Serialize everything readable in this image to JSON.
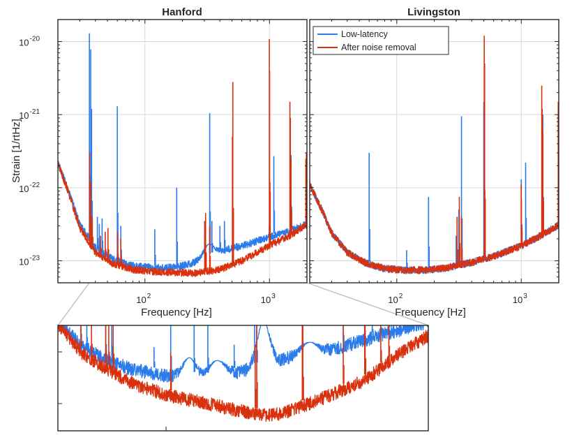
{
  "chart_data": [
    {
      "id": "hanford",
      "type": "line",
      "title": "Hanford",
      "xlabel": "Frequency [Hz]",
      "ylabel": "Strain [1/rtHz]",
      "xscale": "log",
      "yscale": "log",
      "xlim": [
        20,
        2000
      ],
      "ylim": [
        5e-24,
        2e-20
      ],
      "grid": true,
      "xticks": [
        {
          "base": "10",
          "exp": "2",
          "value": 100
        },
        {
          "base": "10",
          "exp": "3",
          "value": 1000
        }
      ],
      "yticks": [
        {
          "base": "10",
          "exp": "-23",
          "value": 1e-23
        },
        {
          "base": "10",
          "exp": "-22",
          "value": 1e-22
        },
        {
          "base": "10",
          "exp": "-21",
          "value": 1e-21
        },
        {
          "base": "10",
          "exp": "-20",
          "value": 1e-20
        }
      ],
      "series": [
        {
          "name": "Low-latency",
          "color": "#2b7bea",
          "baseline": [
            [
              20,
              2.2e-22
            ],
            [
              25,
              8e-23
            ],
            [
              30,
              3.2e-23
            ],
            [
              40,
              1.5e-23
            ],
            [
              55,
              1.05e-23
            ],
            [
              80,
              8.5e-24
            ],
            [
              120,
              8e-24
            ],
            [
              180,
              8.2e-24
            ],
            [
              250,
              9.5e-24
            ],
            [
              400,
              1.35e-23
            ],
            [
              600,
              1.6e-23
            ],
            [
              1000,
              2.1e-23
            ],
            [
              1500,
              2.6e-23
            ],
            [
              2000,
              3.2e-23
            ]
          ],
          "lines": [
            [
              35.8,
              1.3e-20
            ],
            [
              36.7,
              7.8e-21
            ],
            [
              37.3,
              1.2e-21
            ],
            [
              41.5,
              4e-23
            ],
            [
              43,
              3.2e-23
            ],
            [
              45.3,
              3.8e-23
            ],
            [
              60,
              1.3e-21
            ],
            [
              64,
              3e-23
            ],
            [
              120,
              2.7e-23
            ],
            [
              180,
              1e-22
            ],
            [
              302,
              3.5e-23
            ],
            [
              331,
              1.05e-21
            ],
            [
              345,
              3.5e-23
            ],
            [
              400,
              3e-23
            ],
            [
              435,
              3.5e-23
            ],
            [
              505,
              5e-23
            ],
            [
              998,
              3e-23
            ],
            [
              1084,
              2.7e-22
            ],
            [
              1490,
              2.8e-22
            ]
          ],
          "bumps": [
            [
              331,
              1.7e-23,
              0.04
            ],
            [
              550,
              1.25e-23,
              0.05
            ],
            [
              1300,
              1.2e-23,
              0.03
            ]
          ]
        },
        {
          "name": "After noise removal",
          "color": "#d9310e",
          "baseline": [
            [
              20,
              2.2e-22
            ],
            [
              25,
              7.5e-23
            ],
            [
              30,
              2.8e-23
            ],
            [
              40,
              1.3e-23
            ],
            [
              55,
              9.2e-24
            ],
            [
              80,
              7.6e-24
            ],
            [
              120,
              7.1e-24
            ],
            [
              180,
              6.9e-24
            ],
            [
              250,
              6.8e-24
            ],
            [
              400,
              7.6e-24
            ],
            [
              600,
              1e-23
            ],
            [
              1000,
              1.6e-23
            ],
            [
              1500,
              2.3e-23
            ],
            [
              2000,
              3.1e-23
            ]
          ],
          "lines": [
            [
              35.9,
              3e-22
            ],
            [
              36.7,
              1.2e-22
            ],
            [
              37.8,
              4e-23
            ],
            [
              44,
              2.2e-23
            ],
            [
              48,
              2.5e-23
            ],
            [
              50.5,
              2.8e-23
            ],
            [
              60.2,
              2.5e-23
            ],
            [
              64,
              2e-23
            ],
            [
              302,
              3.5e-23
            ],
            [
              307,
              4.5e-23
            ],
            [
              331,
              3e-23
            ],
            [
              504,
              5e-22
            ],
            [
              508,
              2.8e-21
            ],
            [
              998,
              1.08e-20
            ],
            [
              1003,
              4e-21
            ],
            [
              1460,
              1.5e-21
            ],
            [
              1472,
              9e-22
            ],
            [
              1490,
              2.5e-22
            ],
            [
              1960,
              2.5e-22
            ],
            [
              1980,
              3e-22
            ]
          ],
          "bumps": []
        }
      ],
      "legend": null
    },
    {
      "id": "livingston",
      "type": "line",
      "title": "Livingston",
      "xlabel": "Frequency [Hz]",
      "ylabel": "",
      "xscale": "log",
      "yscale": "log",
      "xlim": [
        20,
        2000
      ],
      "ylim": [
        5e-24,
        2e-20
      ],
      "grid": true,
      "xticks": [
        {
          "base": "10",
          "exp": "2",
          "value": 100
        },
        {
          "base": "10",
          "exp": "3",
          "value": 1000
        }
      ],
      "yticks": [],
      "series": [
        {
          "name": "Low-latency",
          "color": "#2b7bea",
          "baseline": [
            [
              20,
              1.1e-22
            ],
            [
              25,
              5e-23
            ],
            [
              30,
              2.4e-23
            ],
            [
              40,
              1.3e-23
            ],
            [
              55,
              9.5e-24
            ],
            [
              80,
              7.8e-24
            ],
            [
              120,
              7.4e-24
            ],
            [
              180,
              7.5e-24
            ],
            [
              250,
              8e-24
            ],
            [
              400,
              9.5e-24
            ],
            [
              600,
              1.15e-23
            ],
            [
              1000,
              1.6e-23
            ],
            [
              1500,
              2.3e-23
            ],
            [
              2000,
              3.1e-23
            ]
          ],
          "lines": [
            [
              60,
              3e-22
            ],
            [
              120,
              1.4e-23
            ],
            [
              180,
              7.5e-23
            ],
            [
              300,
              2.2e-23
            ],
            [
              315,
              5e-23
            ],
            [
              331,
              9.5e-22
            ],
            [
              500,
              1.5e-21
            ],
            [
              1000,
              1.3e-22
            ],
            [
              1084,
              2.2e-22
            ],
            [
              1490,
              1e-21
            ]
          ],
          "bumps": []
        },
        {
          "name": "After noise removal",
          "color": "#d9310e",
          "baseline": [
            [
              20,
              1.1e-22
            ],
            [
              25,
              5e-23
            ],
            [
              30,
              2.4e-23
            ],
            [
              40,
              1.3e-23
            ],
            [
              55,
              9.5e-24
            ],
            [
              80,
              7.8e-24
            ],
            [
              120,
              7.4e-24
            ],
            [
              180,
              7.5e-24
            ],
            [
              250,
              8e-24
            ],
            [
              400,
              9.5e-24
            ],
            [
              600,
              1.15e-23
            ],
            [
              1000,
              1.6e-23
            ],
            [
              1500,
              2.3e-23
            ],
            [
              2000,
              3.1e-23
            ]
          ],
          "lines": [
            [
              305,
              4e-23
            ],
            [
              318,
              7.5e-23
            ],
            [
              331,
              4e-23
            ],
            [
              504,
              1.2e-20
            ],
            [
              508,
              5e-21
            ],
            [
              998,
              1.1e-22
            ],
            [
              1003,
              7e-23
            ],
            [
              1460,
              2.5e-21
            ],
            [
              1472,
              1.2e-21
            ],
            [
              1490,
              6e-22
            ],
            [
              1980,
              1.5e-21
            ],
            [
              1996,
              2e-22
            ]
          ],
          "bumps": []
        }
      ],
      "legend": {
        "position": "top-left",
        "entries": [
          "Low-latency",
          "After noise removal"
        ]
      }
    },
    {
      "id": "zoom",
      "type": "line",
      "title": "",
      "xlabel": "",
      "ylabel": "",
      "xscale": "log",
      "yscale": "log",
      "xlim": [
        35,
        2000
      ],
      "ylim": [
        6.3e-24,
        2.2e-23
      ],
      "grid": false,
      "xticks": [],
      "yticks": [],
      "series": [
        {
          "name": "Low-latency",
          "color": "#2b7bea",
          "baseline": [
            [
              35,
              2.3e-23
            ],
            [
              45,
              1.75e-23
            ],
            [
              60,
              1.45e-23
            ],
            [
              80,
              1.3e-23
            ],
            [
              120,
              1.2e-23
            ],
            [
              180,
              1.17e-23
            ],
            [
              250,
              1.25e-23
            ],
            [
              330,
              1.35e-23
            ],
            [
              400,
              1.45e-23
            ],
            [
              500,
              1.55e-23
            ],
            [
              700,
              1.65e-23
            ],
            [
              1000,
              1.85e-23
            ],
            [
              1500,
              2.1e-23
            ],
            [
              2000,
              2.3e-23
            ]
          ],
          "lines": [
            [
              45,
              2.3e-23
            ],
            [
              48,
              2.2e-23
            ],
            [
              59,
              2.3e-23
            ],
            [
              63,
              2.3e-23
            ],
            [
              100,
              1.7e-23
            ],
            [
              120,
              2.3e-23
            ],
            [
              155,
              2.2e-23
            ],
            [
              180,
              2.3e-23
            ],
            [
              240,
              1.75e-23
            ],
            [
              300,
              2.3e-23
            ],
            [
              307,
              2.3e-23
            ],
            [
              505,
              2.3e-23
            ],
            [
              790,
              2.3e-23
            ],
            [
              998,
              2.3e-23
            ],
            [
              1084,
              2.3e-23
            ],
            [
              1190,
              2.3e-23
            ],
            [
              1300,
              2.3e-23
            ]
          ],
          "bumps": [
            [
              147,
              1.5e-23,
              0.03
            ],
            [
              200,
              1.45e-23,
              0.04
            ],
            [
              331,
              2.3e-23,
              0.03
            ],
            [
              550,
              1.8e-23,
              0.04
            ]
          ]
        },
        {
          "name": "After noise removal",
          "color": "#d9310e",
          "baseline": [
            [
              35,
              2.25e-23
            ],
            [
              45,
              1.6e-23
            ],
            [
              60,
              1.3e-23
            ],
            [
              80,
              1.1e-23
            ],
            [
              120,
              9.5e-24
            ],
            [
              180,
              8.7e-24
            ],
            [
              250,
              8e-24
            ],
            [
              330,
              7.6e-24
            ],
            [
              400,
              7.7e-24
            ],
            [
              500,
              8.4e-24
            ],
            [
              700,
              9.7e-24
            ],
            [
              1000,
              1.15e-23
            ],
            [
              1500,
              1.6e-23
            ],
            [
              2000,
              1.95e-23
            ]
          ],
          "lines": [
            [
              45,
              2.3e-23
            ],
            [
              48.5,
              1.6e-23
            ],
            [
              50.5,
              2.3e-23
            ],
            [
              59,
              2.3e-23
            ],
            [
              61,
              2.3e-23
            ],
            [
              64,
              2.3e-23
            ],
            [
              120,
              1.6e-23
            ],
            [
              302,
              1.75e-23
            ],
            [
              307,
              2.3e-23
            ],
            [
              505,
              2.3e-23
            ],
            [
              508,
              2.3e-23
            ],
            [
              790,
              2.3e-23
            ],
            [
              998,
              2.3e-23
            ],
            [
              1003,
              2.3e-23
            ],
            [
              1190,
              2.3e-23
            ],
            [
              1300,
              2.3e-23
            ]
          ],
          "bumps": []
        }
      ],
      "legend": null
    }
  ],
  "colors": {
    "low_latency": "#2b7bea",
    "after_noise_removal": "#d9310e",
    "axis": "#262626",
    "grid": "#d9d9d9",
    "connector": "#bdbdbd"
  }
}
